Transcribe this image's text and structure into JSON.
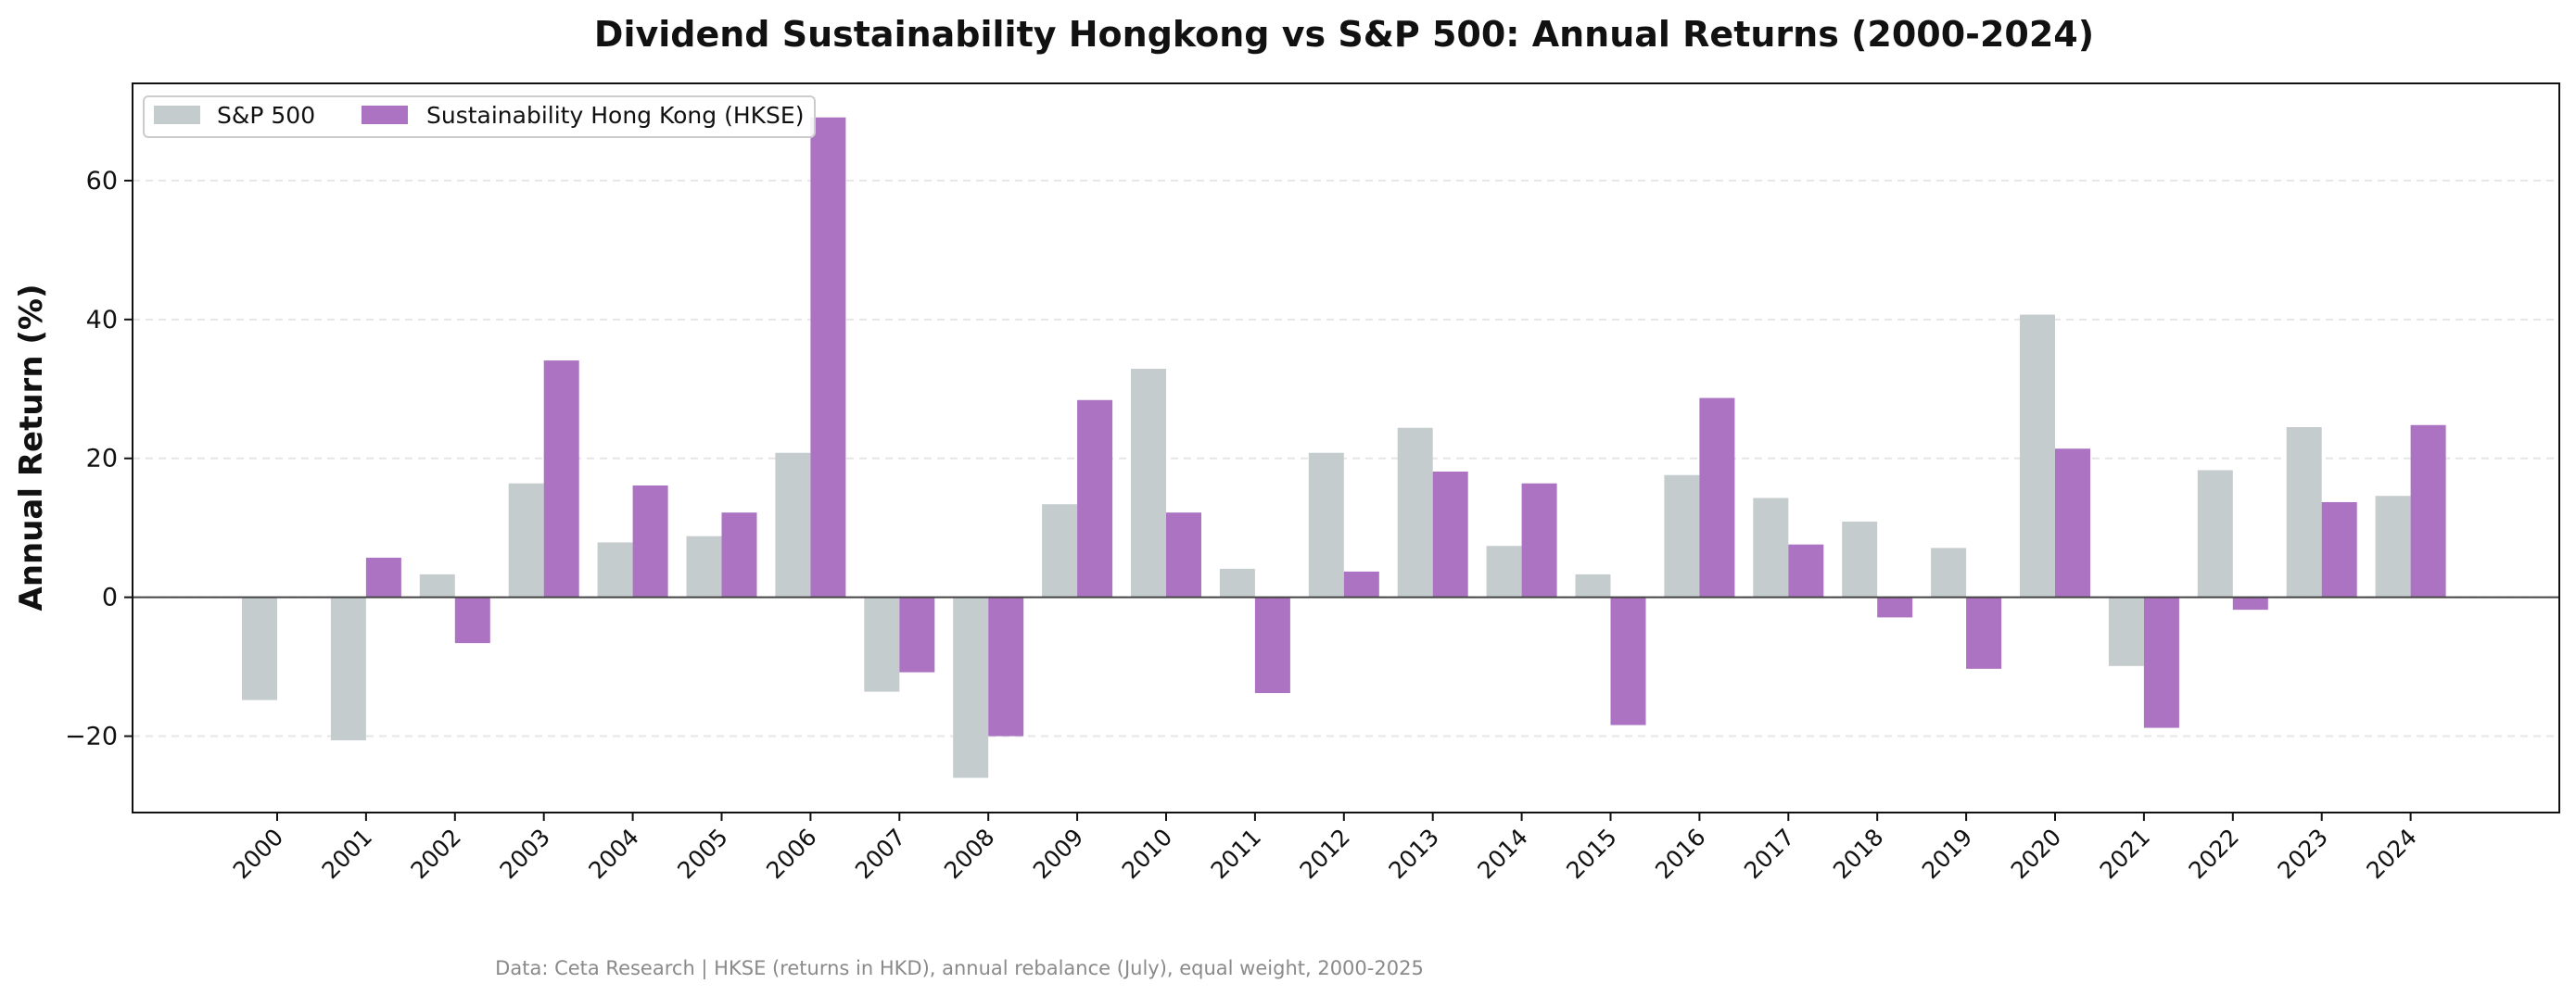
{
  "colors": {
    "sp500": "#c5cccd",
    "hkse": "#ab73c2",
    "grid": "#e6e6e6",
    "zero_line": "#444444",
    "frame": "#111111"
  },
  "chart_data": {
    "type": "bar",
    "title": "Dividend Sustainability Hongkong vs S&P 500: Annual Returns (2000-2024)",
    "xlabel": "",
    "ylabel": "Annual Return (%)",
    "ylim": [
      -31,
      74
    ],
    "yticks": [
      -20,
      0,
      20,
      40,
      60
    ],
    "ytick_labels": [
      "−20",
      "0",
      "20",
      "40",
      "60"
    ],
    "grid": "horizontal dashed",
    "legend_position": "top-left",
    "categories": [
      "2000",
      "2001",
      "2002",
      "2003",
      "2004",
      "2005",
      "2006",
      "2007",
      "2008",
      "2009",
      "2010",
      "2011",
      "2012",
      "2013",
      "2014",
      "2015",
      "2016",
      "2017",
      "2018",
      "2019",
      "2020",
      "2021",
      "2022",
      "2023",
      "2024"
    ],
    "series": [
      {
        "name": "S&P 500",
        "values": [
          -14.8,
          -20.6,
          3.3,
          16.4,
          7.9,
          8.8,
          20.8,
          -13.6,
          -26.0,
          13.4,
          32.9,
          4.1,
          20.8,
          24.4,
          7.4,
          3.3,
          17.6,
          14.3,
          10.9,
          7.1,
          40.7,
          -9.9,
          18.3,
          24.5,
          14.6
        ]
      },
      {
        "name": "Sustainability Hong Kong (HKSE)",
        "values": [
          0,
          5.7,
          -6.6,
          34.1,
          16.1,
          12.2,
          69.1,
          -10.8,
          -20.0,
          28.4,
          12.2,
          -13.8,
          3.7,
          18.1,
          16.4,
          -18.4,
          28.7,
          7.6,
          -2.9,
          -10.3,
          21.4,
          -18.8,
          -1.8,
          13.7,
          24.8
        ]
      }
    ]
  },
  "footnote": "Data: Ceta Research | HKSE (returns in HKD), annual rebalance (July), equal weight, 2000-2025"
}
